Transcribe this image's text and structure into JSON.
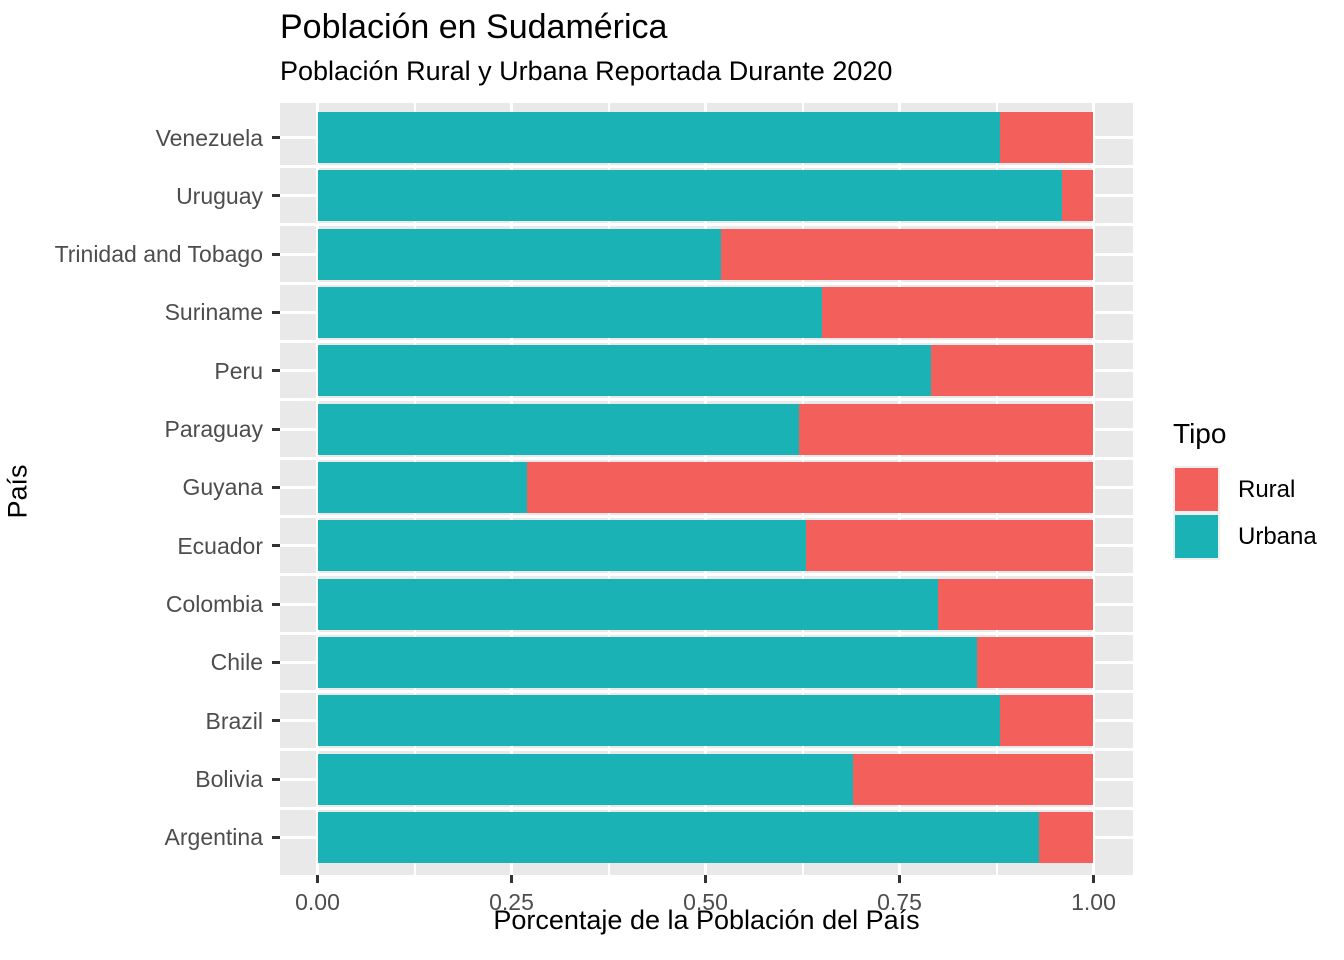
{
  "chart": {
    "title": "Población en Sudamérica",
    "subtitle": "Población Rural y Urbana Reportada Durante 2020",
    "x_axis_title": "Porcentaje de la Población del País",
    "y_axis_title": "País"
  },
  "legend": {
    "title": "Tipo",
    "items": [
      {
        "label": "Rural",
        "color": "#F3605C"
      },
      {
        "label": "Urbana",
        "color": "#1AB2B5"
      }
    ]
  },
  "colors": {
    "rural": "#F3605C",
    "urbana": "#1AB2B5",
    "panel_background": "#E9E9E9",
    "gridline": "#FFFFFF",
    "tick_text": "#4D4D4D"
  },
  "chart_data": {
    "type": "bar",
    "orientation": "horizontal",
    "stacked": true,
    "title": "Población en Sudamérica",
    "subtitle": "Población Rural y Urbana Reportada Durante 2020",
    "xlabel": "Porcentaje de la Población del País",
    "ylabel": "País",
    "xlim": [
      0,
      1
    ],
    "x_tick_values": [
      0,
      0.25,
      0.5,
      0.75,
      1.0
    ],
    "x_tick_labels": [
      "0.00",
      "0.25",
      "0.50",
      "0.75",
      "1.00"
    ],
    "x_minor_tick_values": [
      0.125,
      0.375,
      0.625,
      0.875
    ],
    "grid": true,
    "legend_title": "Tipo",
    "legend_position": "right",
    "theme": "ggplot-gray",
    "categories_top_to_bottom": [
      "Venezuela",
      "Uruguay",
      "Trinidad and Tobago",
      "Suriname",
      "Peru",
      "Paraguay",
      "Guyana",
      "Ecuador",
      "Colombia",
      "Chile",
      "Brazil",
      "Bolivia",
      "Argentina"
    ],
    "series": [
      {
        "name": "Urbana",
        "color": "#1AB2B5",
        "values": [
          0.88,
          0.96,
          0.52,
          0.65,
          0.79,
          0.62,
          0.27,
          0.63,
          0.8,
          0.85,
          0.88,
          0.69,
          0.93
        ]
      },
      {
        "name": "Rural",
        "color": "#F3605C",
        "values": [
          0.12,
          0.04,
          0.48,
          0.35,
          0.21,
          0.38,
          0.73,
          0.37,
          0.2,
          0.15,
          0.12,
          0.31,
          0.07
        ]
      }
    ]
  }
}
